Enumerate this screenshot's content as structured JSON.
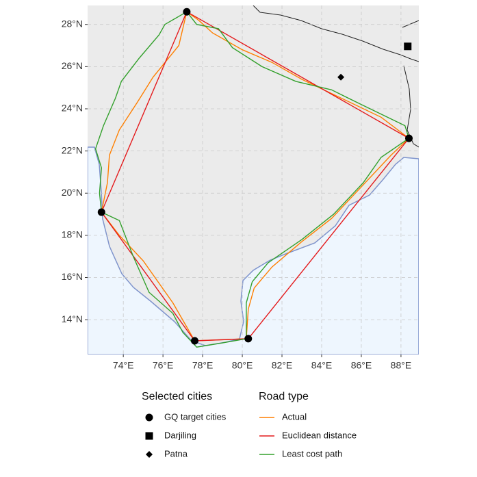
{
  "chart_data": {
    "type": "map",
    "xlim": [
      72.2,
      88.9
    ],
    "ylim": [
      12.35,
      28.9
    ],
    "xticks": [
      {
        "value": 74,
        "label": "74°E"
      },
      {
        "value": 76,
        "label": "76°E"
      },
      {
        "value": 78,
        "label": "78°E"
      },
      {
        "value": 80,
        "label": "80°E"
      },
      {
        "value": 82,
        "label": "82°E"
      },
      {
        "value": 84,
        "label": "84°E"
      },
      {
        "value": 86,
        "label": "86°E"
      },
      {
        "value": 88,
        "label": "88°E"
      }
    ],
    "yticks": [
      {
        "value": 14,
        "label": "14°N"
      },
      {
        "value": 16,
        "label": "16°N"
      },
      {
        "value": 18,
        "label": "18°N"
      },
      {
        "value": 20,
        "label": "20°N"
      },
      {
        "value": 22,
        "label": "22°N"
      },
      {
        "value": 24,
        "label": "24°N"
      },
      {
        "value": 26,
        "label": "26°N"
      },
      {
        "value": 28,
        "label": "28°N"
      }
    ],
    "grid": true,
    "point_legend_title": "Selected cities",
    "points": [
      {
        "name": "GQ target cities",
        "shape": "circle",
        "color": "#000000",
        "x": [
          77.2,
          88.4,
          72.9,
          80.3,
          77.6
        ],
        "y": [
          28.6,
          22.6,
          19.1,
          13.1,
          13.0
        ]
      },
      {
        "name": "Darjiling",
        "shape": "square",
        "color": "#000000",
        "x": [
          88.34
        ],
        "y": [
          26.96
        ]
      },
      {
        "name": "Patna",
        "shape": "diamond",
        "color": "#000000",
        "x": [
          84.97
        ],
        "y": [
          25.5
        ]
      }
    ],
    "line_legend_title": "Road type",
    "series": [
      {
        "name": "Actual",
        "color": "#ff7f00",
        "x": [
          77.2,
          76.8,
          75.5,
          74.7,
          73.8,
          73.3,
          73.2,
          72.9,
          73.8,
          75.0,
          76.5,
          77.6,
          80.2,
          80.3,
          80.6,
          81.5,
          83.0,
          84.5,
          86.0,
          87.5,
          88.4,
          87.0,
          85.0,
          83.0,
          81.5,
          80.0,
          78.5,
          77.8,
          77.2
        ],
        "y": [
          28.6,
          27.0,
          25.5,
          24.3,
          23.0,
          21.8,
          20.5,
          19.1,
          18.0,
          16.8,
          14.8,
          13.0,
          13.1,
          14.5,
          15.5,
          16.5,
          17.7,
          18.8,
          20.3,
          21.8,
          22.6,
          23.6,
          24.5,
          25.4,
          26.2,
          26.8,
          27.6,
          28.2,
          28.6
        ]
      },
      {
        "name": "Euclidean distance",
        "color": "#e41a1c",
        "x": [
          77.2,
          88.4,
          80.3,
          77.6,
          72.9,
          77.2
        ],
        "y": [
          28.6,
          22.6,
          13.1,
          13.0,
          19.1,
          28.6
        ]
      },
      {
        "name": "Least cost path",
        "color": "#33a02c",
        "x": [
          77.2,
          76.1,
          75.8,
          74.8,
          73.9,
          73.6,
          73.0,
          72.6,
          72.9,
          72.8,
          72.9,
          73.8,
          74.5,
          75.3,
          76.5,
          77.0,
          77.7,
          79.0,
          80.2,
          80.2,
          80.5,
          81.3,
          83.0,
          84.6,
          86.1,
          87.0,
          88.4,
          88.2,
          86.0,
          84.5,
          82.7,
          81.0,
          79.5,
          78.8,
          77.7,
          77.2
        ],
        "y": [
          28.6,
          28.0,
          27.5,
          26.4,
          25.3,
          24.5,
          23.2,
          22.1,
          21.2,
          20.0,
          19.1,
          18.7,
          17.0,
          15.3,
          14.3,
          13.4,
          12.7,
          12.9,
          13.1,
          14.8,
          15.8,
          16.7,
          17.8,
          19.0,
          20.5,
          21.7,
          22.6,
          23.2,
          24.2,
          24.9,
          25.3,
          26.0,
          26.9,
          27.8,
          28.0,
          28.6
        ]
      }
    ]
  }
}
